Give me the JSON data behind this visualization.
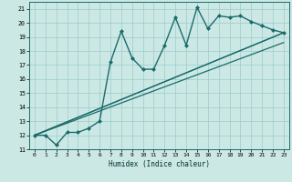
{
  "title": "",
  "xlabel": "Humidex (Indice chaleur)",
  "xlim": [
    -0.5,
    23.5
  ],
  "ylim": [
    11,
    21.5
  ],
  "xticks": [
    0,
    1,
    2,
    3,
    4,
    5,
    6,
    7,
    8,
    9,
    10,
    11,
    12,
    13,
    14,
    15,
    16,
    17,
    18,
    19,
    20,
    21,
    22,
    23
  ],
  "yticks": [
    11,
    12,
    13,
    14,
    15,
    16,
    17,
    18,
    19,
    20,
    21
  ],
  "bg_color": "#cce8e4",
  "line_color": "#1a6b6b",
  "grid_color": "#99cccc",
  "lines": [
    {
      "x": [
        0,
        1,
        2,
        3,
        4,
        5,
        6,
        7,
        8,
        9,
        10,
        11,
        12,
        13,
        14,
        15,
        16,
        17,
        18,
        19,
        20,
        21,
        22,
        23
      ],
      "y": [
        12,
        12,
        11.3,
        12.2,
        12.2,
        12.5,
        13.0,
        17.2,
        19.4,
        17.5,
        16.7,
        16.7,
        18.4,
        20.4,
        18.4,
        21.1,
        19.6,
        20.5,
        20.4,
        20.5,
        20.1,
        19.8,
        19.5,
        19.3
      ],
      "marker": "D",
      "markersize": 2.0,
      "linewidth": 1.0,
      "zorder": 5
    },
    {
      "x": [
        0,
        23
      ],
      "y": [
        12,
        18.6
      ],
      "marker": null,
      "markersize": 0,
      "linewidth": 0.9,
      "zorder": 3
    },
    {
      "x": [
        0,
        23
      ],
      "y": [
        12,
        19.3
      ],
      "marker": null,
      "markersize": 0,
      "linewidth": 0.9,
      "zorder": 3
    },
    {
      "x": [
        0,
        23
      ],
      "y": [
        12,
        19.3
      ],
      "marker": null,
      "markersize": 0,
      "linewidth": 0.9,
      "zorder": 3
    }
  ]
}
